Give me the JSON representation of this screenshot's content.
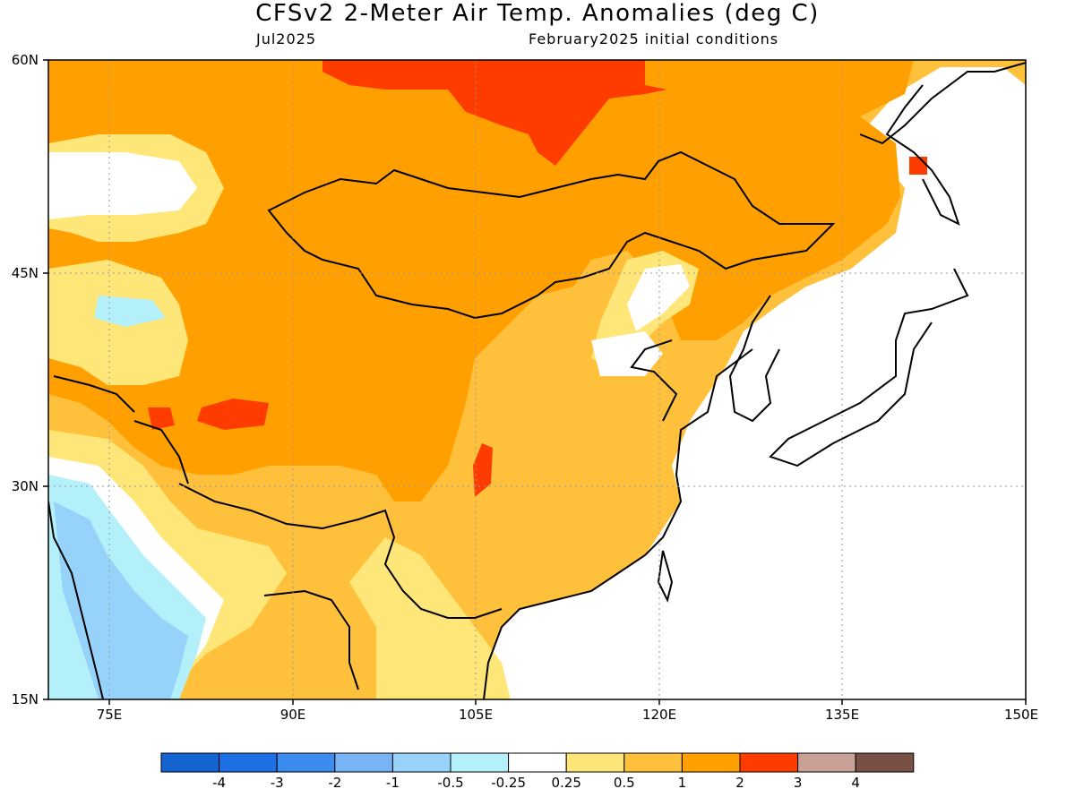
{
  "header": {
    "title": "CFSv2 2-Meter Air Temp. Anomalies (deg C)",
    "target_month": "Jul2025",
    "initial_conditions": "February2025 initial conditions"
  },
  "map": {
    "lon_range": [
      70,
      150
    ],
    "lat_range": [
      15,
      60
    ],
    "y_ticks": [
      "60N",
      "45N",
      "30N",
      "15N"
    ],
    "x_ticks": [
      "75E",
      "90E",
      "105E",
      "120E",
      "135E",
      "150E"
    ],
    "grid": "dotted",
    "ocean_color": "#ffffff",
    "coastline_color": "#000000"
  },
  "colorbar": {
    "colors": [
      "#1464d2",
      "#1e6ee6",
      "#3c8cf0",
      "#78b4f5",
      "#96d2fa",
      "#b4f0fa",
      "#ffffff",
      "#ffe678",
      "#ffc03c",
      "#ffa000",
      "#ff3c00",
      "#c8a096",
      "#785046"
    ],
    "labels": [
      "-4",
      "-3",
      "-2",
      "-1",
      "-0.5",
      "-0.25",
      "0.25",
      "0.5",
      "1",
      "2",
      "3",
      "4"
    ]
  },
  "colors": {
    "anom_0_25_0_5": "#ffe678",
    "anom_0_5_1": "#ffc03c",
    "anom_1_2": "#ffa000",
    "anom_2_3": "#ff3c00",
    "anom_neg_0_25_neg_0_5": "#b4f0fa",
    "anom_neg_0_5_neg_1": "#96d2fa",
    "anom_neg_1_neg_2": "#78b4f5"
  }
}
